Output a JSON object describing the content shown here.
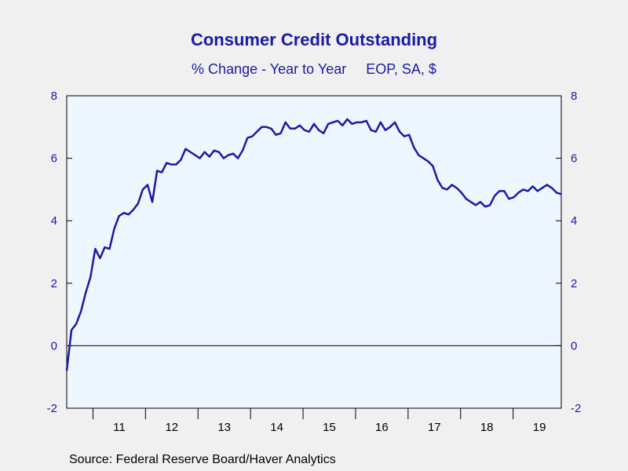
{
  "chart_data": {
    "type": "line",
    "title": "Consumer Credit Outstanding",
    "subtitle": "% Change - Year to Year     EOP, SA, $",
    "source": "Source:  Federal Reserve Board/Haver Analytics",
    "ylim": [
      -2,
      8
    ],
    "y_ticks": [
      -2,
      0,
      2,
      4,
      6,
      8
    ],
    "x_start_year": 2010.5,
    "x_end_year": 2019.917,
    "x_ticks": [
      "11",
      "12",
      "13",
      "14",
      "15",
      "16",
      "17",
      "18",
      "19"
    ],
    "reference_line": 0,
    "grid": false,
    "series": [
      {
        "values": [
          -0.8,
          0.5,
          0.7,
          1.1,
          1.7,
          2.2,
          3.1,
          2.8,
          3.15,
          3.1,
          3.75,
          4.15,
          4.25,
          4.2,
          4.35,
          4.55,
          5.0,
          5.15,
          4.6,
          5.6,
          5.55,
          5.85,
          5.8,
          5.8,
          5.95,
          6.3,
          6.2,
          6.1,
          6.0,
          6.2,
          6.05,
          6.25,
          6.2,
          6.0,
          6.1,
          6.15,
          6.0,
          6.25,
          6.65,
          6.7,
          6.85,
          7.0,
          7.0,
          6.95,
          6.75,
          6.8,
          7.15,
          6.95,
          6.95,
          7.05,
          6.9,
          6.85,
          7.1,
          6.9,
          6.8,
          7.1,
          7.15,
          7.2,
          7.05,
          7.25,
          7.1,
          7.15,
          7.15,
          7.2,
          6.9,
          6.85,
          7.15,
          6.9,
          7.0,
          7.15,
          6.85,
          6.7,
          6.75,
          6.35,
          6.1,
          6.0,
          5.9,
          5.75,
          5.3,
          5.05,
          5.0,
          5.15,
          5.05,
          4.9,
          4.7,
          4.6,
          4.5,
          4.6,
          4.45,
          4.5,
          4.8,
          4.95,
          4.95,
          4.7,
          4.75,
          4.9,
          5.0,
          4.95,
          5.1,
          4.95,
          5.05,
          5.15,
          5.05,
          4.9,
          4.85
        ]
      }
    ]
  },
  "colors": {
    "line": "#1a1aa6",
    "plot_bg": "#eef6ff",
    "page_bg": "#f0f0f0",
    "text": "#1a1aa6"
  }
}
